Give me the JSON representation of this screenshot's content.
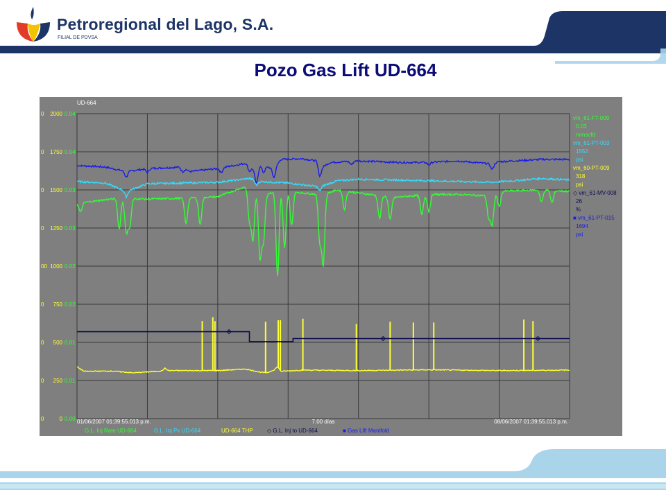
{
  "header": {
    "company_name": "Petroregional del Lago, S.A.",
    "company_subtitle": "FILIAL DE PDVSA",
    "title": "Pozo Gas Lift UD-664"
  },
  "colors": {
    "brand_navy": "#1d3466",
    "band_light_blue": "#a9d4ea",
    "title_blue": "#0c0c78",
    "plot_bg": "#7f7f7f",
    "grid": "#3a3a3a"
  },
  "chart_data": {
    "type": "line",
    "title": "UD-664",
    "x_start_label": "01/06/2007 01:39:55.013 p.m.",
    "x_end_label": "08/06/2007 01:39:55.013 p.m.",
    "x_span_label": "7.00 días",
    "x_range_days": [
      0,
      7
    ],
    "grid": true,
    "legend_placement": "right",
    "y_axes": [
      {
        "color": "#ffff33",
        "ticks": [
          "0",
          "250",
          "500",
          "750",
          "1000",
          "1250",
          "1500",
          "1750",
          "2000"
        ],
        "range": [
          0,
          2000
        ]
      },
      {
        "color": "#33ff33",
        "ticks": [
          "0.00",
          "0.01",
          "0.01",
          "0.02",
          "0.02",
          "0.03",
          "0.03",
          "0.04",
          "0.04"
        ],
        "range": [
          0,
          0.04
        ]
      }
    ],
    "y_edge_ticks": [
      "0",
      "0",
      "0",
      "0",
      "00",
      "0",
      "0",
      "0",
      "0"
    ],
    "side_panel": [
      {
        "tag": "vm_61-FT-009",
        "value": "0.03",
        "unit": "mmscfd",
        "color": "#33ff33",
        "marker": ""
      },
      {
        "tag": "vm_61-PT-003",
        "value": "1552",
        "unit": "psi",
        "color": "#33ddff",
        "marker": ""
      },
      {
        "tag": "vm_60-PT-009",
        "value": "318",
        "unit": "psi",
        "color": "#ffff33",
        "marker": ""
      },
      {
        "tag": "vm_61-MV-008",
        "value": "26",
        "unit": "%",
        "color": "#0a0a50",
        "marker": "◇"
      },
      {
        "tag": "vm_61-PT-015",
        "value": "1694",
        "unit": "psi",
        "color": "#1a1aee",
        "marker": "■"
      }
    ],
    "legend": [
      {
        "label": "G.L. Inj Rate UD-664",
        "color": "#33ff33",
        "marker": ""
      },
      {
        "label": "G.L. Inj Px UD-664",
        "color": "#33ddff",
        "marker": ""
      },
      {
        "label": "UD-664 THP",
        "color": "#ffff33",
        "marker": ""
      },
      {
        "label": "G.L. Inj to UD-664",
        "color": "#0a0a50",
        "marker": "◇"
      },
      {
        "label": "Gas Lift Manifold",
        "color": "#1a1aee",
        "marker": "■"
      }
    ],
    "series": [
      {
        "name": "Gas Lift Manifold",
        "color": "#1a1aee",
        "axis": 0,
        "base": [
          [
            0,
            1660
          ],
          [
            0.4,
            1650
          ],
          [
            0.7,
            1620
          ],
          [
            1.0,
            1640
          ],
          [
            1.5,
            1650
          ],
          [
            1.6,
            1620
          ],
          [
            2.0,
            1640
          ],
          [
            2.4,
            1675
          ],
          [
            2.5,
            1640
          ],
          [
            2.55,
            1600
          ],
          [
            2.6,
            1660
          ],
          [
            2.8,
            1640
          ],
          [
            2.9,
            1700
          ],
          [
            3.2,
            1705
          ],
          [
            3.4,
            1690
          ],
          [
            3.45,
            1640
          ],
          [
            3.6,
            1680
          ],
          [
            4.0,
            1690
          ],
          [
            4.6,
            1680
          ],
          [
            5.0,
            1680
          ],
          [
            5.4,
            1690
          ],
          [
            5.9,
            1670
          ],
          [
            6.0,
            1685
          ],
          [
            6.6,
            1700
          ],
          [
            7.0,
            1700
          ]
        ],
        "dips": [
          [
            0.7,
            35
          ],
          [
            1.0,
            25
          ],
          [
            1.5,
            30
          ],
          [
            2.05,
            30
          ],
          [
            2.45,
            35
          ],
          [
            2.55,
            60
          ],
          [
            2.65,
            40
          ],
          [
            2.8,
            60
          ],
          [
            3.45,
            50
          ],
          [
            3.9,
            20
          ],
          [
            5.0,
            15
          ],
          [
            5.9,
            35
          ]
        ]
      },
      {
        "name": "G.L. Inj Px UD-664",
        "color": "#33ddff",
        "axis": 0,
        "base": [
          [
            0,
            1555
          ],
          [
            0.4,
            1545
          ],
          [
            0.7,
            1490
          ],
          [
            1.0,
            1540
          ],
          [
            2.0,
            1550
          ],
          [
            2.45,
            1575
          ],
          [
            2.6,
            1555
          ],
          [
            3.0,
            1545
          ],
          [
            3.45,
            1520
          ],
          [
            3.7,
            1560
          ],
          [
            4.0,
            1570
          ],
          [
            5.0,
            1560
          ],
          [
            5.9,
            1550
          ],
          [
            6.2,
            1560
          ],
          [
            6.6,
            1575
          ],
          [
            7.0,
            1565
          ]
        ],
        "dips": [
          [
            0.7,
            35
          ],
          [
            2.55,
            30
          ],
          [
            3.45,
            25
          ]
        ]
      },
      {
        "name": "G.L. Inj Rate UD-664",
        "color": "#33ff33",
        "axis": 0,
        "base": [
          [
            0,
            1410
          ],
          [
            0.3,
            1430
          ],
          [
            0.6,
            1445
          ],
          [
            1.0,
            1440
          ],
          [
            1.5,
            1445
          ],
          [
            2.0,
            1455
          ],
          [
            2.2,
            1490
          ],
          [
            2.45,
            1530
          ],
          [
            2.6,
            1460
          ],
          [
            2.9,
            1500
          ],
          [
            3.2,
            1480
          ],
          [
            3.5,
            1470
          ],
          [
            3.7,
            1500
          ],
          [
            4.0,
            1480
          ],
          [
            4.5,
            1450
          ],
          [
            5.0,
            1470
          ],
          [
            5.4,
            1470
          ],
          [
            5.9,
            1460
          ],
          [
            6.0,
            1490
          ],
          [
            6.6,
            1500
          ],
          [
            7.0,
            1490
          ]
        ],
        "dips": [
          [
            0.05,
            60
          ],
          [
            0.6,
            200
          ],
          [
            0.7,
            220
          ],
          [
            0.75,
            180
          ],
          [
            1.55,
            170
          ],
          [
            1.75,
            180
          ],
          [
            2.45,
            230
          ],
          [
            2.5,
            330
          ],
          [
            2.6,
            400
          ],
          [
            2.65,
            300
          ],
          [
            2.85,
            560
          ],
          [
            2.95,
            380
          ],
          [
            3.05,
            220
          ],
          [
            3.45,
            300
          ],
          [
            3.5,
            450
          ],
          [
            3.8,
            120
          ],
          [
            4.3,
            150
          ],
          [
            4.45,
            150
          ],
          [
            4.9,
            130
          ],
          [
            5.0,
            110
          ],
          [
            5.85,
            140
          ],
          [
            5.9,
            190
          ],
          [
            6.0,
            100
          ],
          [
            6.6,
            80
          ],
          [
            6.75,
            80
          ]
        ]
      },
      {
        "name": "UD-664 THP",
        "color": "#ffff33",
        "axis": 0,
        "base": [
          [
            0,
            340
          ],
          [
            0.1,
            310
          ],
          [
            0.5,
            312
          ],
          [
            0.8,
            300
          ],
          [
            1.2,
            312
          ],
          [
            1.25,
            330
          ],
          [
            1.3,
            315
          ],
          [
            2.0,
            315
          ],
          [
            2.4,
            325
          ],
          [
            2.6,
            305
          ],
          [
            2.7,
            300
          ],
          [
            2.8,
            320
          ],
          [
            2.85,
            340
          ],
          [
            2.9,
            310
          ],
          [
            3.2,
            318
          ],
          [
            4.0,
            315
          ],
          [
            5.0,
            320
          ],
          [
            6.0,
            315
          ],
          [
            7.0,
            318
          ]
        ],
        "spikes": [
          [
            1.78,
            640
          ],
          [
            1.93,
            665
          ],
          [
            1.96,
            640
          ],
          [
            2.68,
            635
          ],
          [
            2.86,
            645
          ],
          [
            2.89,
            645
          ],
          [
            3.21,
            655
          ],
          [
            3.97,
            620
          ],
          [
            4.45,
            635
          ],
          [
            4.78,
            630
          ],
          [
            5.07,
            630
          ],
          [
            6.35,
            650
          ],
          [
            6.48,
            640
          ]
        ]
      },
      {
        "name": "G.L. Inj to UD-664",
        "color": "#0a0a50",
        "axis": 0,
        "steps": [
          [
            0,
            570
          ],
          [
            2.45,
            570
          ],
          [
            2.45,
            505
          ],
          [
            3.07,
            505
          ],
          [
            3.07,
            525
          ],
          [
            7.0,
            525
          ]
        ],
        "marker_x": [
          2.16,
          4.35,
          6.55
        ]
      }
    ]
  }
}
